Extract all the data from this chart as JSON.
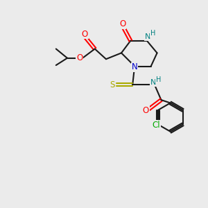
{
  "background_color": "#ebebeb",
  "bond_color": "#1a1a1a",
  "atom_colors": {
    "O": "#ff0000",
    "N": "#0000cc",
    "NH": "#008080",
    "S": "#aaaa00",
    "Cl": "#00aa00",
    "C": "#1a1a1a",
    "H": "#008080"
  },
  "figsize": [
    3.0,
    3.0
  ],
  "dpi": 100
}
